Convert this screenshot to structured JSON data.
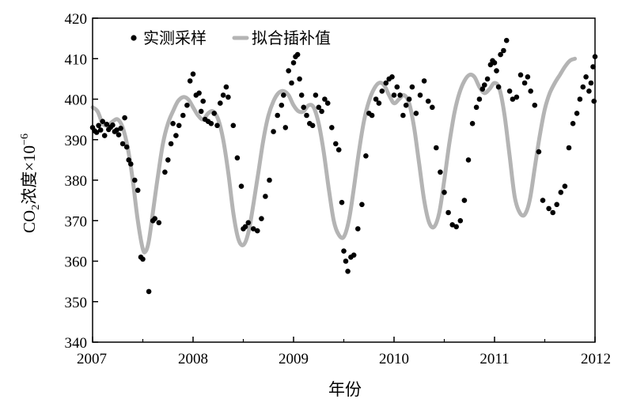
{
  "chart_data": {
    "type": "scatter",
    "title": "",
    "xlabel": "年份",
    "ylabel_main": "CO",
    "ylabel_sub": "2",
    "ylabel_rest": "浓度×10",
    "ylabel_exp": "−6",
    "xlim": [
      2007,
      2012
    ],
    "ylim": [
      340,
      420
    ],
    "x_ticks": [
      2007,
      2008,
      2009,
      2010,
      2011,
      2012
    ],
    "y_ticks": [
      340,
      350,
      360,
      370,
      380,
      390,
      400,
      410,
      420
    ],
    "grid": false,
    "legend_placement": "top-left",
    "colors": {
      "measured": "#000000",
      "fitted": "#b4b4b4",
      "axis": "#000000"
    },
    "series": [
      {
        "name": "实测采样",
        "kind": "scatter",
        "points": [
          [
            2007.0,
            393.0
          ],
          [
            2007.02,
            392.2
          ],
          [
            2007.04,
            391.8
          ],
          [
            2007.06,
            393.5
          ],
          [
            2007.08,
            392.4
          ],
          [
            2007.1,
            394.5
          ],
          [
            2007.12,
            391.0
          ],
          [
            2007.14,
            393.8
          ],
          [
            2007.16,
            392.5
          ],
          [
            2007.18,
            393.1
          ],
          [
            2007.2,
            393.6
          ],
          [
            2007.22,
            392.0
          ],
          [
            2007.24,
            392.4
          ],
          [
            2007.26,
            391.2
          ],
          [
            2007.28,
            392.8
          ],
          [
            2007.3,
            389.0
          ],
          [
            2007.32,
            395.4
          ],
          [
            2007.34,
            388.2
          ],
          [
            2007.36,
            385.0
          ],
          [
            2007.38,
            384.0
          ],
          [
            2007.42,
            380.0
          ],
          [
            2007.45,
            377.5
          ],
          [
            2007.48,
            361.0
          ],
          [
            2007.5,
            360.5
          ],
          [
            2007.56,
            352.5
          ],
          [
            2007.6,
            370.0
          ],
          [
            2007.62,
            370.5
          ],
          [
            2007.66,
            369.5
          ],
          [
            2007.72,
            382.0
          ],
          [
            2007.75,
            385.0
          ],
          [
            2007.78,
            389.0
          ],
          [
            2007.8,
            394.0
          ],
          [
            2007.83,
            391.0
          ],
          [
            2007.86,
            393.5
          ],
          [
            2007.9,
            396.0
          ],
          [
            2007.94,
            398.5
          ],
          [
            2007.97,
            404.5
          ],
          [
            2008.0,
            406.2
          ],
          [
            2008.03,
            401.0
          ],
          [
            2008.06,
            401.5
          ],
          [
            2008.08,
            397.0
          ],
          [
            2008.1,
            399.5
          ],
          [
            2008.12,
            395.0
          ],
          [
            2008.15,
            394.5
          ],
          [
            2008.18,
            394.0
          ],
          [
            2008.21,
            396.5
          ],
          [
            2008.24,
            393.5
          ],
          [
            2008.27,
            399.0
          ],
          [
            2008.3,
            401.0
          ],
          [
            2008.33,
            403.0
          ],
          [
            2008.35,
            400.5
          ],
          [
            2008.4,
            393.5
          ],
          [
            2008.44,
            385.5
          ],
          [
            2008.48,
            378.5
          ],
          [
            2008.5,
            368.0
          ],
          [
            2008.52,
            368.5
          ],
          [
            2008.55,
            369.5
          ],
          [
            2008.6,
            368.0
          ],
          [
            2008.64,
            367.5
          ],
          [
            2008.68,
            370.5
          ],
          [
            2008.72,
            376.0
          ],
          [
            2008.76,
            380.0
          ],
          [
            2008.8,
            392.0
          ],
          [
            2008.84,
            396.0
          ],
          [
            2008.88,
            398.5
          ],
          [
            2008.9,
            401.0
          ],
          [
            2008.92,
            393.0
          ],
          [
            2008.95,
            407.0
          ],
          [
            2008.98,
            404.0
          ],
          [
            2009.0,
            409.0
          ],
          [
            2009.02,
            410.5
          ],
          [
            2009.04,
            411.0
          ],
          [
            2009.06,
            405.0
          ],
          [
            2009.08,
            401.0
          ],
          [
            2009.1,
            398.0
          ],
          [
            2009.13,
            396.0
          ],
          [
            2009.16,
            394.0
          ],
          [
            2009.19,
            393.5
          ],
          [
            2009.22,
            401.0
          ],
          [
            2009.25,
            398.0
          ],
          [
            2009.28,
            397.0
          ],
          [
            2009.31,
            400.0
          ],
          [
            2009.34,
            399.0
          ],
          [
            2009.38,
            393.0
          ],
          [
            2009.42,
            389.0
          ],
          [
            2009.45,
            387.5
          ],
          [
            2009.48,
            374.5
          ],
          [
            2009.5,
            362.5
          ],
          [
            2009.52,
            360.0
          ],
          [
            2009.54,
            357.5
          ],
          [
            2009.57,
            361.0
          ],
          [
            2009.6,
            361.5
          ],
          [
            2009.64,
            368.0
          ],
          [
            2009.68,
            374.0
          ],
          [
            2009.72,
            386.0
          ],
          [
            2009.75,
            396.5
          ],
          [
            2009.78,
            396.0
          ],
          [
            2009.82,
            400.0
          ],
          [
            2009.85,
            399.0
          ],
          [
            2009.88,
            402.0
          ],
          [
            2009.92,
            404.0
          ],
          [
            2009.95,
            405.0
          ],
          [
            2009.98,
            405.5
          ],
          [
            2010.0,
            401.0
          ],
          [
            2010.03,
            403.0
          ],
          [
            2010.06,
            401.0
          ],
          [
            2010.09,
            396.0
          ],
          [
            2010.12,
            398.5
          ],
          [
            2010.15,
            400.0
          ],
          [
            2010.18,
            403.0
          ],
          [
            2010.22,
            396.5
          ],
          [
            2010.26,
            401.0
          ],
          [
            2010.3,
            404.5
          ],
          [
            2010.34,
            399.5
          ],
          [
            2010.38,
            398.0
          ],
          [
            2010.42,
            388.0
          ],
          [
            2010.46,
            382.0
          ],
          [
            2010.5,
            377.0
          ],
          [
            2010.54,
            372.0
          ],
          [
            2010.58,
            369.0
          ],
          [
            2010.62,
            368.5
          ],
          [
            2010.66,
            370.0
          ],
          [
            2010.7,
            375.0
          ],
          [
            2010.74,
            385.0
          ],
          [
            2010.78,
            394.0
          ],
          [
            2010.82,
            398.0
          ],
          [
            2010.85,
            400.0
          ],
          [
            2010.88,
            402.5
          ],
          [
            2010.9,
            403.5
          ],
          [
            2010.93,
            405.0
          ],
          [
            2010.96,
            408.5
          ],
          [
            2010.98,
            409.5
          ],
          [
            2011.0,
            409.0
          ],
          [
            2011.02,
            407.0
          ],
          [
            2011.04,
            403.0
          ],
          [
            2011.06,
            411.0
          ],
          [
            2011.09,
            412.0
          ],
          [
            2011.12,
            414.5
          ],
          [
            2011.15,
            402.0
          ],
          [
            2011.18,
            400.0
          ],
          [
            2011.22,
            400.5
          ],
          [
            2011.26,
            406.0
          ],
          [
            2011.3,
            404.0
          ],
          [
            2011.33,
            405.5
          ],
          [
            2011.36,
            402.0
          ],
          [
            2011.4,
            398.5
          ],
          [
            2011.44,
            387.0
          ],
          [
            2011.48,
            375.0
          ],
          [
            2011.54,
            373.0
          ],
          [
            2011.58,
            372.0
          ],
          [
            2011.62,
            374.0
          ],
          [
            2011.66,
            377.0
          ],
          [
            2011.7,
            378.5
          ],
          [
            2011.74,
            388.0
          ],
          [
            2011.78,
            394.0
          ],
          [
            2011.82,
            396.5
          ],
          [
            2011.85,
            400.0
          ],
          [
            2011.88,
            403.0
          ],
          [
            2011.91,
            405.5
          ],
          [
            2011.94,
            402.0
          ],
          [
            2011.96,
            404.0
          ],
          [
            2011.98,
            408.0
          ],
          [
            2012.0,
            410.5
          ],
          [
            2011.99,
            399.5
          ]
        ]
      },
      {
        "name": "拟合插补值",
        "kind": "line",
        "points": [
          [
            2007.0,
            398.0
          ],
          [
            2007.05,
            397.0
          ],
          [
            2007.1,
            394.0
          ],
          [
            2007.15,
            393.5
          ],
          [
            2007.2,
            394.5
          ],
          [
            2007.25,
            395.0
          ],
          [
            2007.3,
            393.0
          ],
          [
            2007.35,
            388.0
          ],
          [
            2007.4,
            380.0
          ],
          [
            2007.45,
            370.0
          ],
          [
            2007.5,
            363.0
          ],
          [
            2007.53,
            362.5
          ],
          [
            2007.56,
            365.0
          ],
          [
            2007.6,
            372.0
          ],
          [
            2007.65,
            381.0
          ],
          [
            2007.7,
            389.0
          ],
          [
            2007.75,
            394.0
          ],
          [
            2007.8,
            397.0
          ],
          [
            2007.85,
            399.5
          ],
          [
            2007.9,
            400.5
          ],
          [
            2007.95,
            400.0
          ],
          [
            2008.0,
            398.0
          ],
          [
            2008.05,
            396.0
          ],
          [
            2008.1,
            395.0
          ],
          [
            2008.15,
            396.5
          ],
          [
            2008.2,
            397.0
          ],
          [
            2008.25,
            395.0
          ],
          [
            2008.3,
            390.0
          ],
          [
            2008.35,
            382.0
          ],
          [
            2008.4,
            372.0
          ],
          [
            2008.45,
            365.5
          ],
          [
            2008.5,
            364.0
          ],
          [
            2008.55,
            367.0
          ],
          [
            2008.6,
            374.0
          ],
          [
            2008.65,
            382.0
          ],
          [
            2008.7,
            390.0
          ],
          [
            2008.75,
            396.0
          ],
          [
            2008.8,
            399.5
          ],
          [
            2008.85,
            401.5
          ],
          [
            2008.9,
            402.0
          ],
          [
            2008.95,
            401.0
          ],
          [
            2009.0,
            398.5
          ],
          [
            2009.05,
            397.0
          ],
          [
            2009.1,
            397.0
          ],
          [
            2009.15,
            398.5
          ],
          [
            2009.2,
            398.0
          ],
          [
            2009.25,
            394.0
          ],
          [
            2009.3,
            387.0
          ],
          [
            2009.35,
            378.0
          ],
          [
            2009.4,
            370.0
          ],
          [
            2009.45,
            366.5
          ],
          [
            2009.5,
            366.0
          ],
          [
            2009.55,
            370.0
          ],
          [
            2009.6,
            378.0
          ],
          [
            2009.65,
            387.0
          ],
          [
            2009.7,
            394.5
          ],
          [
            2009.75,
            399.5
          ],
          [
            2009.8,
            402.5
          ],
          [
            2009.85,
            404.0
          ],
          [
            2009.9,
            403.5
          ],
          [
            2009.95,
            401.0
          ],
          [
            2010.0,
            399.0
          ],
          [
            2010.05,
            400.0
          ],
          [
            2010.1,
            401.0
          ],
          [
            2010.15,
            399.0
          ],
          [
            2010.2,
            393.0
          ],
          [
            2010.25,
            384.0
          ],
          [
            2010.3,
            375.0
          ],
          [
            2010.35,
            369.5
          ],
          [
            2010.4,
            368.5
          ],
          [
            2010.45,
            372.0
          ],
          [
            2010.5,
            380.0
          ],
          [
            2010.55,
            389.0
          ],
          [
            2010.6,
            396.5
          ],
          [
            2010.65,
            401.5
          ],
          [
            2010.7,
            404.5
          ],
          [
            2010.75,
            406.0
          ],
          [
            2010.8,
            405.5
          ],
          [
            2010.85,
            403.0
          ],
          [
            2010.9,
            401.5
          ],
          [
            2010.95,
            402.5
          ],
          [
            2011.0,
            404.0
          ],
          [
            2011.05,
            402.5
          ],
          [
            2011.1,
            396.0
          ],
          [
            2011.15,
            386.0
          ],
          [
            2011.2,
            376.0
          ],
          [
            2011.25,
            372.0
          ],
          [
            2011.3,
            371.5
          ],
          [
            2011.35,
            375.0
          ],
          [
            2011.4,
            383.0
          ],
          [
            2011.45,
            391.0
          ],
          [
            2011.5,
            397.5
          ],
          [
            2011.55,
            401.5
          ],
          [
            2011.6,
            404.0
          ],
          [
            2011.65,
            406.0
          ],
          [
            2011.7,
            408.0
          ],
          [
            2011.75,
            409.5
          ],
          [
            2011.8,
            410.0
          ]
        ]
      }
    ]
  }
}
